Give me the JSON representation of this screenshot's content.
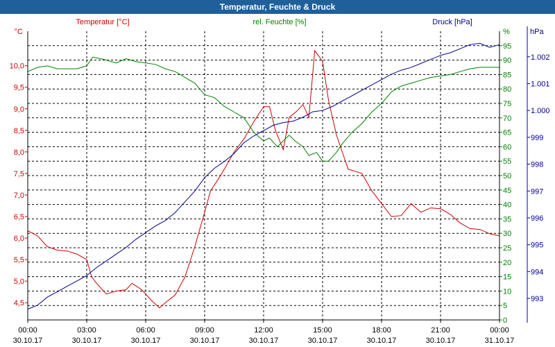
{
  "chart_data": {
    "type": "line",
    "title": "Temperatur, Feuchte & Druck",
    "x_ticks": [
      {
        "time": "00:00",
        "date": "30.10.17"
      },
      {
        "time": "03:00",
        "date": "30.10.17"
      },
      {
        "time": "06:00",
        "date": "30.10.17"
      },
      {
        "time": "09:00",
        "date": "30.10.17"
      },
      {
        "time": "12:00",
        "date": "30.10.17"
      },
      {
        "time": "15:00",
        "date": "30.10.17"
      },
      {
        "time": "18:00",
        "date": "30.10.17"
      },
      {
        "time": "21:00",
        "date": "30.10.17"
      },
      {
        "time": "00:00",
        "date": "31.10.17"
      }
    ],
    "xlim_hours": [
      0,
      24
    ],
    "axes": {
      "temperature": {
        "label": "Temperatur [°C]",
        "unit": "°C",
        "color": "#cc0000",
        "ylim": [
          4.1,
          10.8
        ],
        "ticks": [
          "4,5",
          "5,0",
          "5,5",
          "6,0",
          "6,5",
          "7,0",
          "7,5",
          "8,0",
          "8,5",
          "9,0",
          "9,5",
          "10,0"
        ]
      },
      "humidity": {
        "label": "rel. Feuchte [%]",
        "unit": "%",
        "color": "#008000",
        "ylim": [
          0,
          100
        ],
        "ticks": [
          "0",
          "5",
          "10",
          "15",
          "20",
          "25",
          "30",
          "35",
          "40",
          "45",
          "50",
          "55",
          "60",
          "65",
          "70",
          "75",
          "80",
          "85",
          "90",
          "95"
        ]
      },
      "pressure": {
        "label": "Druck [hPa]",
        "unit": "hPa",
        "color": "#00008b",
        "ylim": [
          992.2,
          1002.95
        ],
        "ticks": [
          "993",
          "994",
          "995",
          "996",
          "997",
          "998",
          "999",
          "1.000",
          "1.001",
          "1.002"
        ]
      }
    },
    "series": [
      {
        "name": "Temperatur",
        "axis": "temperature",
        "points": [
          [
            0,
            6.17
          ],
          [
            0.5,
            6.05
          ],
          [
            1,
            5.8
          ],
          [
            1.5,
            5.72
          ],
          [
            2,
            5.7
          ],
          [
            2.5,
            5.63
          ],
          [
            3,
            5.5
          ],
          [
            3.25,
            5.1
          ],
          [
            3.5,
            4.95
          ],
          [
            4,
            4.7
          ],
          [
            4.5,
            4.77
          ],
          [
            5,
            4.8
          ],
          [
            5.3,
            4.95
          ],
          [
            5.8,
            4.8
          ],
          [
            6.3,
            4.55
          ],
          [
            6.7,
            4.38
          ],
          [
            7,
            4.5
          ],
          [
            7.5,
            4.68
          ],
          [
            8,
            5.1
          ],
          [
            8.5,
            5.8
          ],
          [
            9,
            6.6
          ],
          [
            9.3,
            7.1
          ],
          [
            9.6,
            7.3
          ],
          [
            10,
            7.6
          ],
          [
            10.5,
            8.0
          ],
          [
            11,
            8.3
          ],
          [
            11.5,
            8.7
          ],
          [
            12,
            9.05
          ],
          [
            12.3,
            9.05
          ],
          [
            12.6,
            8.5
          ],
          [
            13,
            8.05
          ],
          [
            13.3,
            8.8
          ],
          [
            13.7,
            8.95
          ],
          [
            14,
            9.1
          ],
          [
            14.3,
            8.8
          ],
          [
            14.6,
            10.35
          ],
          [
            15,
            10.1
          ],
          [
            15.3,
            9.2
          ],
          [
            15.7,
            8.4
          ],
          [
            16,
            8.0
          ],
          [
            16.3,
            7.6
          ],
          [
            17,
            7.5
          ],
          [
            17.5,
            7.1
          ],
          [
            18,
            6.8
          ],
          [
            18.5,
            6.5
          ],
          [
            19,
            6.52
          ],
          [
            19.5,
            6.8
          ],
          [
            20,
            6.6
          ],
          [
            20.5,
            6.7
          ],
          [
            21,
            6.68
          ],
          [
            21.5,
            6.55
          ],
          [
            22,
            6.35
          ],
          [
            22.5,
            6.22
          ],
          [
            23,
            6.2
          ],
          [
            23.5,
            6.1
          ],
          [
            24,
            6.05
          ]
        ]
      },
      {
        "name": "rel. Feuchte",
        "axis": "humidity",
        "points": [
          [
            0,
            86
          ],
          [
            0.5,
            87.5
          ],
          [
            1,
            88
          ],
          [
            1.5,
            87
          ],
          [
            2,
            87
          ],
          [
            2.5,
            87
          ],
          [
            3,
            88
          ],
          [
            3.3,
            91
          ],
          [
            3.7,
            90.5
          ],
          [
            4,
            90
          ],
          [
            4.5,
            89
          ],
          [
            5,
            90.5
          ],
          [
            5.5,
            89.5
          ],
          [
            6,
            89
          ],
          [
            6.5,
            88.5
          ],
          [
            7,
            87
          ],
          [
            7.5,
            86
          ],
          [
            8,
            84
          ],
          [
            8.5,
            82
          ],
          [
            9,
            78
          ],
          [
            9.5,
            77
          ],
          [
            10,
            74
          ],
          [
            10.5,
            72
          ],
          [
            11,
            70
          ],
          [
            11.5,
            65
          ],
          [
            12,
            62
          ],
          [
            12.3,
            63
          ],
          [
            12.7,
            60
          ],
          [
            13,
            62
          ],
          [
            13.3,
            64
          ],
          [
            13.6,
            62
          ],
          [
            14,
            60
          ],
          [
            14.3,
            57
          ],
          [
            14.7,
            58
          ],
          [
            15,
            55
          ],
          [
            15.3,
            55
          ],
          [
            15.7,
            58
          ],
          [
            16,
            61
          ],
          [
            16.5,
            65
          ],
          [
            17,
            68
          ],
          [
            17.5,
            72
          ],
          [
            18,
            75
          ],
          [
            18.5,
            79
          ],
          [
            19,
            81
          ],
          [
            19.5,
            82
          ],
          [
            20,
            83
          ],
          [
            20.5,
            84
          ],
          [
            21,
            84.5
          ],
          [
            21.5,
            85
          ],
          [
            22,
            86
          ],
          [
            22.5,
            87
          ],
          [
            23,
            87.5
          ],
          [
            23.5,
            87.5
          ],
          [
            24,
            87.5
          ]
        ]
      },
      {
        "name": "Druck",
        "axis": "pressure",
        "points": [
          [
            0,
            992.6
          ],
          [
            0.5,
            992.75
          ],
          [
            1,
            993.05
          ],
          [
            1.5,
            993.25
          ],
          [
            2,
            993.45
          ],
          [
            2.5,
            993.65
          ],
          [
            3,
            993.85
          ],
          [
            3.5,
            994.15
          ],
          [
            4,
            994.4
          ],
          [
            4.5,
            994.65
          ],
          [
            5,
            994.9
          ],
          [
            5.5,
            995.2
          ],
          [
            6,
            995.45
          ],
          [
            6.5,
            995.7
          ],
          [
            7,
            995.9
          ],
          [
            7.5,
            996.2
          ],
          [
            8,
            996.6
          ],
          [
            8.5,
            997.0
          ],
          [
            9,
            997.5
          ],
          [
            9.5,
            997.85
          ],
          [
            10,
            998.1
          ],
          [
            10.5,
            998.4
          ],
          [
            11,
            998.8
          ],
          [
            11.5,
            999.05
          ],
          [
            12,
            999.25
          ],
          [
            12.5,
            999.45
          ],
          [
            13,
            999.55
          ],
          [
            13.5,
            999.6
          ],
          [
            14,
            999.75
          ],
          [
            14.5,
            999.95
          ],
          [
            15,
            1000.0
          ],
          [
            15.5,
            1000.15
          ],
          [
            16,
            1000.35
          ],
          [
            16.5,
            1000.55
          ],
          [
            17,
            1000.75
          ],
          [
            17.5,
            1000.95
          ],
          [
            18,
            1001.15
          ],
          [
            18.5,
            1001.35
          ],
          [
            19,
            1001.5
          ],
          [
            19.5,
            1001.6
          ],
          [
            20,
            1001.75
          ],
          [
            20.5,
            1001.9
          ],
          [
            21,
            1002.05
          ],
          [
            21.5,
            1002.15
          ],
          [
            22,
            1002.3
          ],
          [
            22.5,
            1002.45
          ],
          [
            23,
            1002.5
          ],
          [
            23.5,
            1002.35
          ],
          [
            24,
            1002.45
          ]
        ]
      }
    ]
  }
}
